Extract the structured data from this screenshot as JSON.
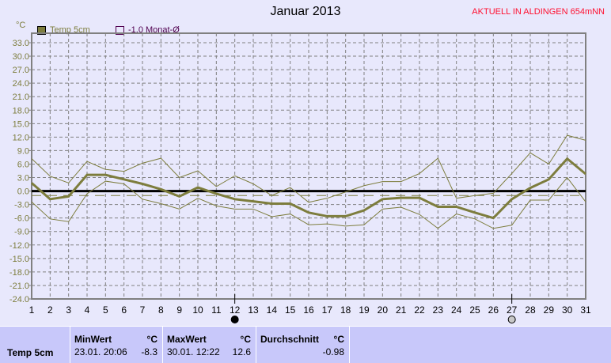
{
  "chart_data": {
    "type": "line",
    "title": "Januar 2013",
    "station_label": "AKTUELL IN ALDINGEN 654mNN",
    "ylabel": "°C",
    "ylim": [
      -24,
      33
    ],
    "ytick_step": 3,
    "yticks": [
      "33.0",
      "30.0",
      "27.0",
      "24.0",
      "21.0",
      "18.0",
      "15.0",
      "12.0",
      "9.0",
      "6.0",
      "3.0",
      "0.0",
      "-3.0",
      "-6.0",
      "-9.0",
      "-12.0",
      "-15.0",
      "-18.0",
      "-21.0",
      "-24.0"
    ],
    "x": [
      1,
      2,
      3,
      4,
      5,
      6,
      7,
      8,
      9,
      10,
      11,
      12,
      13,
      14,
      15,
      16,
      17,
      18,
      19,
      20,
      21,
      22,
      23,
      24,
      25,
      26,
      27,
      28,
      29,
      30,
      31
    ],
    "grid": true,
    "legend_position": "top-left",
    "legend": [
      {
        "label": "Temp 5cm",
        "color": "#7d7d3d"
      },
      {
        "label": "-1.0 Monat-Ø",
        "color": "#500050"
      }
    ],
    "series": [
      {
        "name": "Temp 5cm",
        "color": "#7d7d3d",
        "values": [
          1.8,
          -1.8,
          -1.2,
          3.6,
          3.6,
          2.6,
          1.6,
          0.4,
          -1.2,
          0.8,
          -0.6,
          -1.8,
          -2.3,
          -2.8,
          -2.8,
          -4.8,
          -5.6,
          -5.6,
          -4.3,
          -1.8,
          -1.5,
          -1.5,
          -3.5,
          -3.5,
          -4.8,
          -6.0,
          -1.8,
          0.7,
          2.6,
          7.2,
          3.8
        ]
      },
      {
        "name": "Temp 5cm max",
        "color": "#7d7d3d",
        "values": [
          7.2,
          3.3,
          1.8,
          6.6,
          4.8,
          4.4,
          6.2,
          7.3,
          3.0,
          4.5,
          1.0,
          3.4,
          1.6,
          -1.0,
          0.8,
          -2.5,
          -1.6,
          -0.2,
          1.2,
          2.1,
          2.1,
          3.9,
          7.3,
          -1.6,
          -1.0,
          -0.5,
          3.9,
          8.5,
          6.0,
          12.4,
          11.3
        ]
      },
      {
        "name": "Temp 5cm min",
        "color": "#7d7d3d",
        "values": [
          -2.4,
          -6.2,
          -6.8,
          -0.6,
          2.2,
          1.6,
          -1.8,
          -2.8,
          -4.0,
          -1.6,
          -3.3,
          -4.0,
          -4.0,
          -5.7,
          -5.1,
          -7.5,
          -7.3,
          -7.8,
          -7.5,
          -4.0,
          -3.6,
          -5.2,
          -8.3,
          -5.1,
          -6.2,
          -8.3,
          -7.6,
          -2.0,
          -2.0,
          3.0,
          -2.4
        ]
      }
    ],
    "month_mean": -1.0,
    "moon_markers": [
      {
        "day": 12,
        "phase": "new-moon"
      },
      {
        "day": 27,
        "phase": "full-moon"
      }
    ]
  },
  "stats": {
    "row_label": "Temp 5cm",
    "min": {
      "header": "MinWert",
      "unit": "°C",
      "time": "23.01.  20:06",
      "value": "-8.3"
    },
    "max": {
      "header": "MaxWert",
      "unit": "°C",
      "time": "30.01.  12:22",
      "value": "12.6"
    },
    "avg": {
      "header": "Durchschnitt",
      "unit": "°C",
      "value": "-0.98"
    }
  }
}
